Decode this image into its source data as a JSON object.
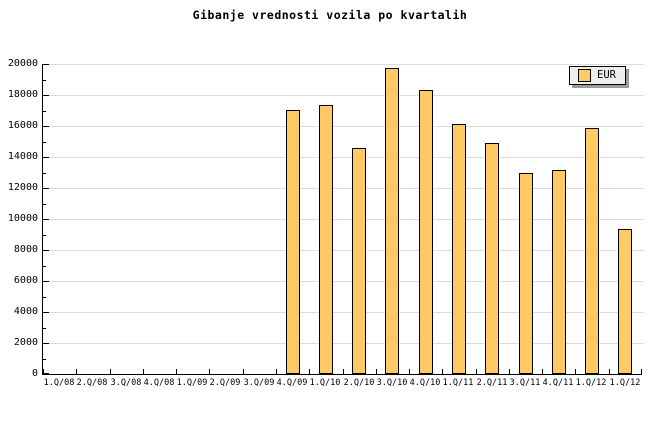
{
  "page": {
    "background": "#FFFFFF"
  },
  "chart_data": {
    "type": "bar",
    "title": "Gibanje vrednosti vozila po kvartalih",
    "categories": [
      "1.Q/08",
      "2.Q/08",
      "3.Q/08",
      "4.Q/08",
      "1.Q/09",
      "2.Q/09",
      "3.Q/09",
      "4.Q/09",
      "1.Q/10",
      "2.Q/10",
      "3.Q/10",
      "4.Q/10",
      "1.Q/11",
      "2.Q/11",
      "3.Q/11",
      "4.Q/11",
      "1.Q/12",
      "1.Q/12"
    ],
    "series": [
      {
        "name": "EUR",
        "values": [
          null,
          null,
          null,
          null,
          null,
          null,
          null,
          17000,
          17350,
          14550,
          19750,
          18330,
          16150,
          14930,
          12950,
          13190,
          15840,
          9370
        ]
      }
    ],
    "xlabel": "",
    "ylabel": "",
    "ylim": [
      0,
      20000
    ],
    "y_major_step": 2000,
    "y_minor_step": 1000,
    "y_tick_labels": [
      "0",
      "2000",
      "4000",
      "6000",
      "8000",
      "10000",
      "12000",
      "14000",
      "16000",
      "18000",
      "20000"
    ],
    "grid": true,
    "legend_position": "top-right",
    "colors": {
      "bar_fill": "#FFC966",
      "bar_border": "#000000",
      "grid_line": "#DCDCDC",
      "axis": "#000000",
      "text": "#000000",
      "legend_bg": "#EEEEEE",
      "legend_shadow": "#999999"
    }
  }
}
